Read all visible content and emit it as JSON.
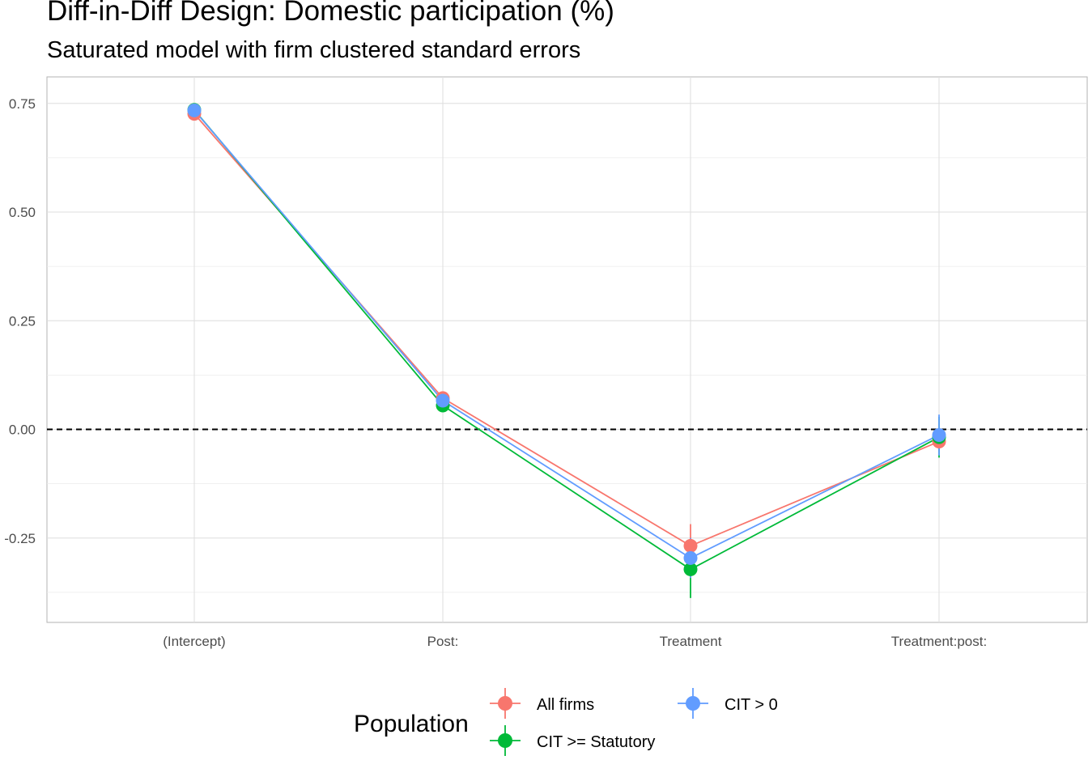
{
  "chart_data": {
    "type": "scatter",
    "title": "Diff-in-Diff Design: Domestic participation (%)",
    "subtitle": "Saturated model with firm clustered standard errors",
    "xlabel": "",
    "ylabel": "",
    "categories": [
      "(Intercept)",
      "Post:",
      "Treatment",
      "Treatment:post:"
    ],
    "y_ticks": [
      -0.25,
      0.0,
      0.25,
      0.5,
      0.75
    ],
    "y_tick_labels": [
      "-0.25",
      "0.00",
      "0.25",
      "0.50",
      "0.75"
    ],
    "ylim": [
      -0.44,
      0.8
    ],
    "grid": true,
    "reference_line": {
      "y": 0,
      "style": "dashed"
    },
    "legend": {
      "title": "Population",
      "placement": "bottom"
    },
    "series": [
      {
        "name": "All firms",
        "color": "#F8766D",
        "values": [
          0.726,
          0.072,
          -0.268,
          -0.028
        ],
        "ci_low": [
          0.72,
          0.064,
          -0.318,
          -0.05
        ],
        "ci_high": [
          0.732,
          0.08,
          -0.218,
          -0.006
        ]
      },
      {
        "name": "CIT >= Statutory",
        "color": "#00BA38",
        "values": [
          0.735,
          0.055,
          -0.322,
          -0.018
        ],
        "ci_low": [
          0.729,
          0.047,
          -0.388,
          -0.065
        ],
        "ci_high": [
          0.741,
          0.063,
          -0.256,
          0.029
        ]
      },
      {
        "name": "CIT > 0",
        "color": "#619CFF",
        "values": [
          0.734,
          0.066,
          -0.296,
          -0.013
        ],
        "ci_low": [
          0.728,
          0.058,
          -0.342,
          -0.06
        ],
        "ci_high": [
          0.74,
          0.074,
          -0.25,
          0.034
        ]
      }
    ]
  }
}
